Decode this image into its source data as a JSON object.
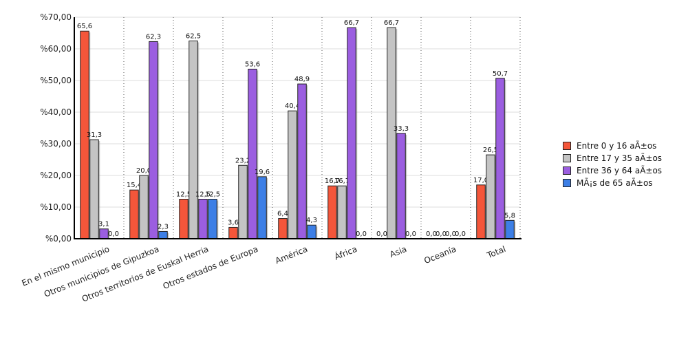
{
  "chart_data": {
    "type": "bar",
    "categories": [
      "En el mismo municipio",
      "Otros municipios de Gipuzkoa",
      "Otros territorios de Euskal Herria",
      "Otros estados de Europa",
      "América",
      "África",
      "Asia",
      "Oceanía",
      "Total"
    ],
    "series": [
      {
        "name": "Entre 0 y 16 aÃ±os",
        "color": "#f4563a",
        "values": [
          65.6,
          15.4,
          12.5,
          3.6,
          6.4,
          16.7,
          0.0,
          0.0,
          17.0
        ]
      },
      {
        "name": "Entre 17 y 35 aÃ±os",
        "color": "#c4c4c4",
        "values": [
          31.3,
          20.0,
          62.5,
          23.2,
          40.4,
          16.7,
          66.7,
          0.0,
          26.5
        ]
      },
      {
        "name": "Entre 36 y 64 aÃ±os",
        "color": "#9b5ee0",
        "values": [
          3.1,
          62.3,
          12.5,
          53.6,
          48.9,
          66.7,
          33.3,
          0.0,
          50.7
        ]
      },
      {
        "name": "MÃ¡s de 65 aÃ±os",
        "color": "#3d7fe6",
        "values": [
          0.0,
          2.3,
          12.5,
          19.6,
          4.3,
          0.0,
          0.0,
          0.0,
          5.8
        ]
      }
    ],
    "y_ticks": [
      "%0,00",
      "%10,00",
      "%20,00",
      "%30,00",
      "%40,00",
      "%50,00",
      "%60,00",
      "%70,00"
    ],
    "ylim": [
      0,
      70
    ],
    "grid": true,
    "legend_position": "right"
  }
}
